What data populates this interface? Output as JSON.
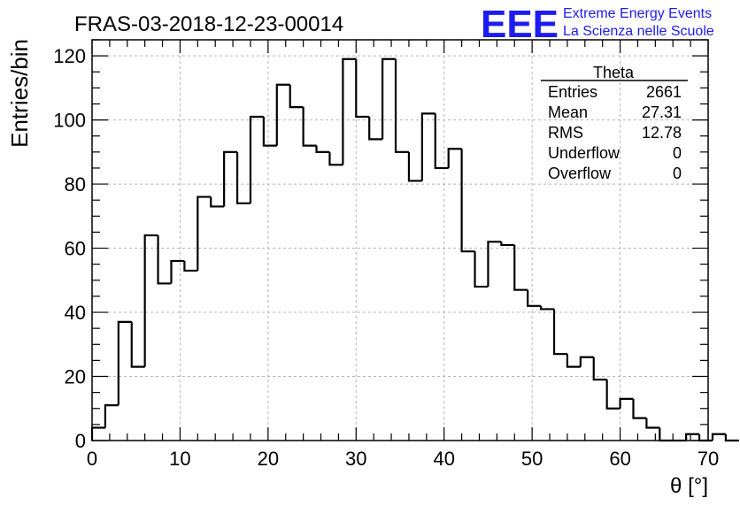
{
  "header": {
    "run_title": "FRAS-03-2018-12-23-00014",
    "logo_mark": "EEE",
    "logo_line1": "Extreme Energy Events",
    "logo_line2": "La Scienza nelle Scuole"
  },
  "stats": {
    "title": "Theta",
    "rows": [
      {
        "label": "Entries",
        "value": "2661"
      },
      {
        "label": "Mean",
        "value": "27.31"
      },
      {
        "label": "RMS",
        "value": "12.78"
      },
      {
        "label": "Underflow",
        "value": "0"
      },
      {
        "label": "Overflow",
        "value": "0"
      }
    ]
  },
  "chart_data": {
    "type": "bar",
    "style": "step-histogram",
    "title": "FRAS-03-2018-12-23-00014",
    "xlabel": "θ [°]",
    "ylabel": "Entries/bin",
    "xlim": [
      0,
      70
    ],
    "ylim": [
      0,
      125
    ],
    "bin_width": 1.5,
    "grid": true,
    "x_ticks": [
      0,
      10,
      20,
      30,
      40,
      50,
      60,
      70
    ],
    "y_ticks": [
      0,
      20,
      40,
      60,
      80,
      100,
      120
    ],
    "bin_edges_start": 0,
    "values": [
      4,
      11,
      37,
      23,
      64,
      49,
      56,
      53,
      76,
      73,
      90,
      74,
      101,
      92,
      111,
      104,
      92,
      90,
      86,
      119,
      101,
      94,
      119,
      90,
      81,
      102,
      85,
      91,
      59,
      48,
      62,
      61,
      47,
      42,
      41,
      27,
      23,
      26,
      19,
      10,
      13,
      7,
      4,
      0,
      0,
      2,
      0,
      2,
      0
    ]
  },
  "colors": {
    "line": "#000000",
    "grid": "#b4b4b4",
    "logo": "#1c1cf0"
  }
}
